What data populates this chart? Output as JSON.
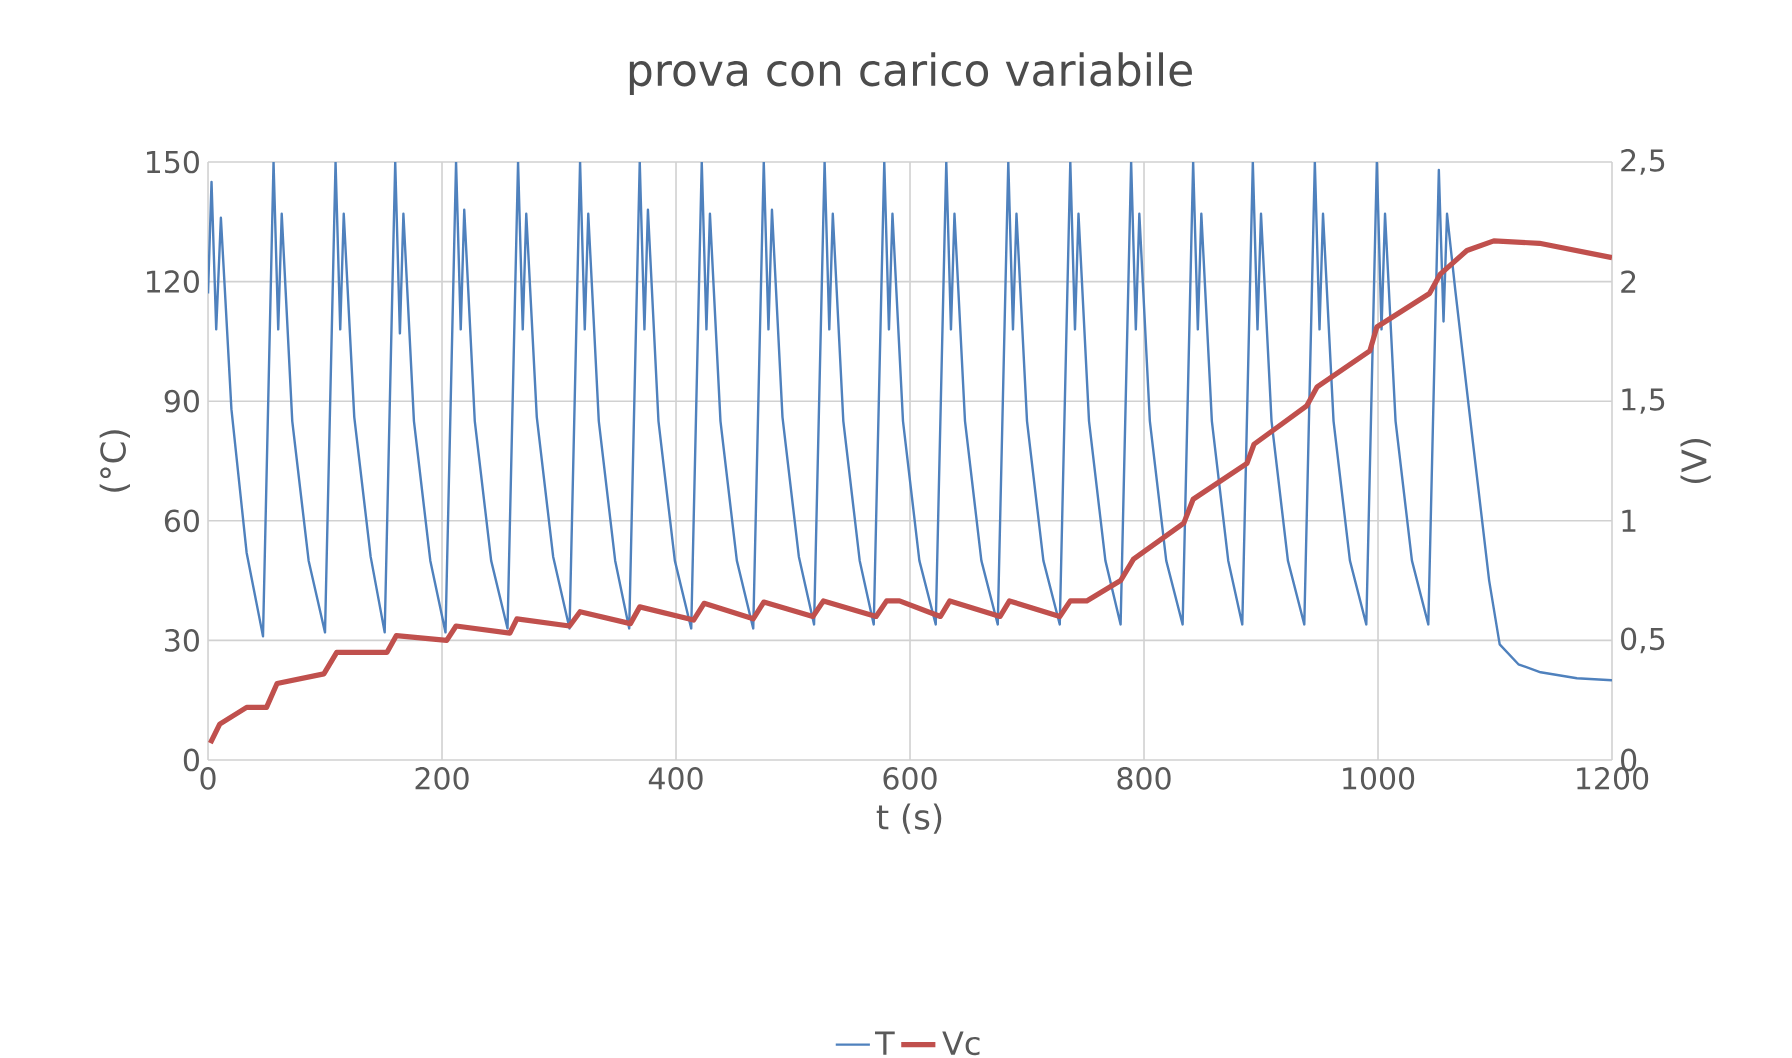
{
  "chart_data": {
    "type": "line",
    "title": "prova con carico variabile",
    "xlabel": "t (s)",
    "ylabel": "(°C)",
    "y2label": "(V)",
    "xlim": [
      0,
      1200
    ],
    "xticks": [
      0,
      200,
      400,
      600,
      800,
      1000,
      1200
    ],
    "ylim": [
      0,
      150
    ],
    "yticks": [
      0,
      30,
      60,
      90,
      120,
      150
    ],
    "y2lim": [
      0,
      2.5
    ],
    "y2ticks": [
      {
        "value": 0,
        "label": "0"
      },
      {
        "value": 0.5,
        "label": "0,5"
      },
      {
        "value": 1,
        "label": "1"
      },
      {
        "value": 1.5,
        "label": "1,5"
      },
      {
        "value": 2,
        "label": "2"
      },
      {
        "value": 2.5,
        "label": "2,5"
      }
    ],
    "grid": true,
    "legend": "bottom",
    "series": [
      {
        "name": "T",
        "color": "#4f81bd",
        "axis": "y",
        "x": [
          0,
          3,
          7,
          11,
          20,
          33,
          47,
          56,
          60,
          63,
          72,
          86,
          100,
          109,
          113,
          116,
          125,
          139,
          151,
          160,
          164,
          167,
          176,
          190,
          203,
          212,
          216,
          219,
          228,
          242,
          256,
          265,
          269,
          272,
          281,
          295,
          309,
          318,
          322,
          325,
          334,
          348,
          360,
          369,
          373,
          376,
          385,
          399,
          413,
          422,
          426,
          429,
          438,
          452,
          466,
          475,
          479,
          482,
          491,
          505,
          518,
          527,
          531,
          534,
          543,
          557,
          569,
          578,
          582,
          585,
          594,
          608,
          622,
          631,
          635,
          638,
          647,
          661,
          675,
          684,
          688,
          691,
          700,
          714,
          728,
          737,
          741,
          744,
          753,
          767,
          780,
          789,
          793,
          796,
          805,
          819,
          833,
          842,
          846,
          849,
          858,
          872,
          884,
          893,
          897,
          900,
          909,
          923,
          937,
          946,
          950,
          953,
          962,
          976,
          990,
          999,
          1003,
          1006,
          1015,
          1029,
          1043,
          1052,
          1056,
          1059,
          1066,
          1081,
          1095,
          1104,
          1120,
          1139,
          1170,
          1200
        ],
        "values": [
          117,
          145,
          108,
          136,
          88,
          52,
          31,
          150,
          108,
          137,
          85,
          50,
          32,
          150,
          108,
          137,
          86,
          51,
          32,
          150,
          107,
          137,
          85,
          50,
          32,
          150,
          108,
          138,
          85,
          50,
          33,
          150,
          108,
          137,
          86,
          51,
          33,
          150,
          108,
          137,
          85,
          50,
          33,
          150,
          108,
          138,
          85,
          50,
          33,
          150,
          108,
          137,
          85,
          50,
          33,
          150,
          108,
          138,
          86,
          51,
          34,
          150,
          108,
          137,
          85,
          50,
          34,
          150,
          108,
          137,
          85,
          50,
          34,
          150,
          108,
          137,
          85,
          50,
          34,
          150,
          108,
          137,
          85,
          50,
          34,
          150,
          108,
          137,
          85,
          50,
          34,
          150,
          108,
          137,
          85,
          50,
          34,
          150,
          108,
          137,
          85,
          50,
          34,
          150,
          108,
          137,
          85,
          50,
          34,
          150,
          108,
          137,
          85,
          50,
          34,
          150,
          108,
          137,
          85,
          50,
          34,
          148,
          110,
          137,
          118,
          80,
          45,
          29,
          24,
          22,
          20.5,
          20
        ]
      },
      {
        "name": "Vc",
        "color": "#c0504d",
        "axis": "y2",
        "x": [
          2,
          10,
          33,
          50,
          59,
          99,
          110,
          153,
          161,
          204,
          212,
          258,
          264,
          309,
          318,
          361,
          369,
          415,
          424,
          466,
          475,
          517,
          526,
          571,
          580,
          591,
          626,
          634,
          677,
          685,
          728,
          737,
          751,
          780,
          791,
          834,
          842,
          888,
          894,
          939,
          948,
          993,
          999,
          1044,
          1053,
          1076,
          1099,
          1138,
          1200
        ],
        "values": [
          0.07,
          0.15,
          0.22,
          0.22,
          0.32,
          0.36,
          0.45,
          0.45,
          0.52,
          0.5,
          0.56,
          0.53,
          0.59,
          0.56,
          0.62,
          0.57,
          0.64,
          0.585,
          0.655,
          0.59,
          0.66,
          0.6,
          0.665,
          0.6,
          0.665,
          0.665,
          0.6,
          0.665,
          0.6,
          0.665,
          0.6,
          0.665,
          0.665,
          0.75,
          0.84,
          0.99,
          1.09,
          1.24,
          1.32,
          1.48,
          1.56,
          1.71,
          1.81,
          1.95,
          2.03,
          2.13,
          2.17,
          2.16,
          2.1
        ]
      }
    ]
  }
}
